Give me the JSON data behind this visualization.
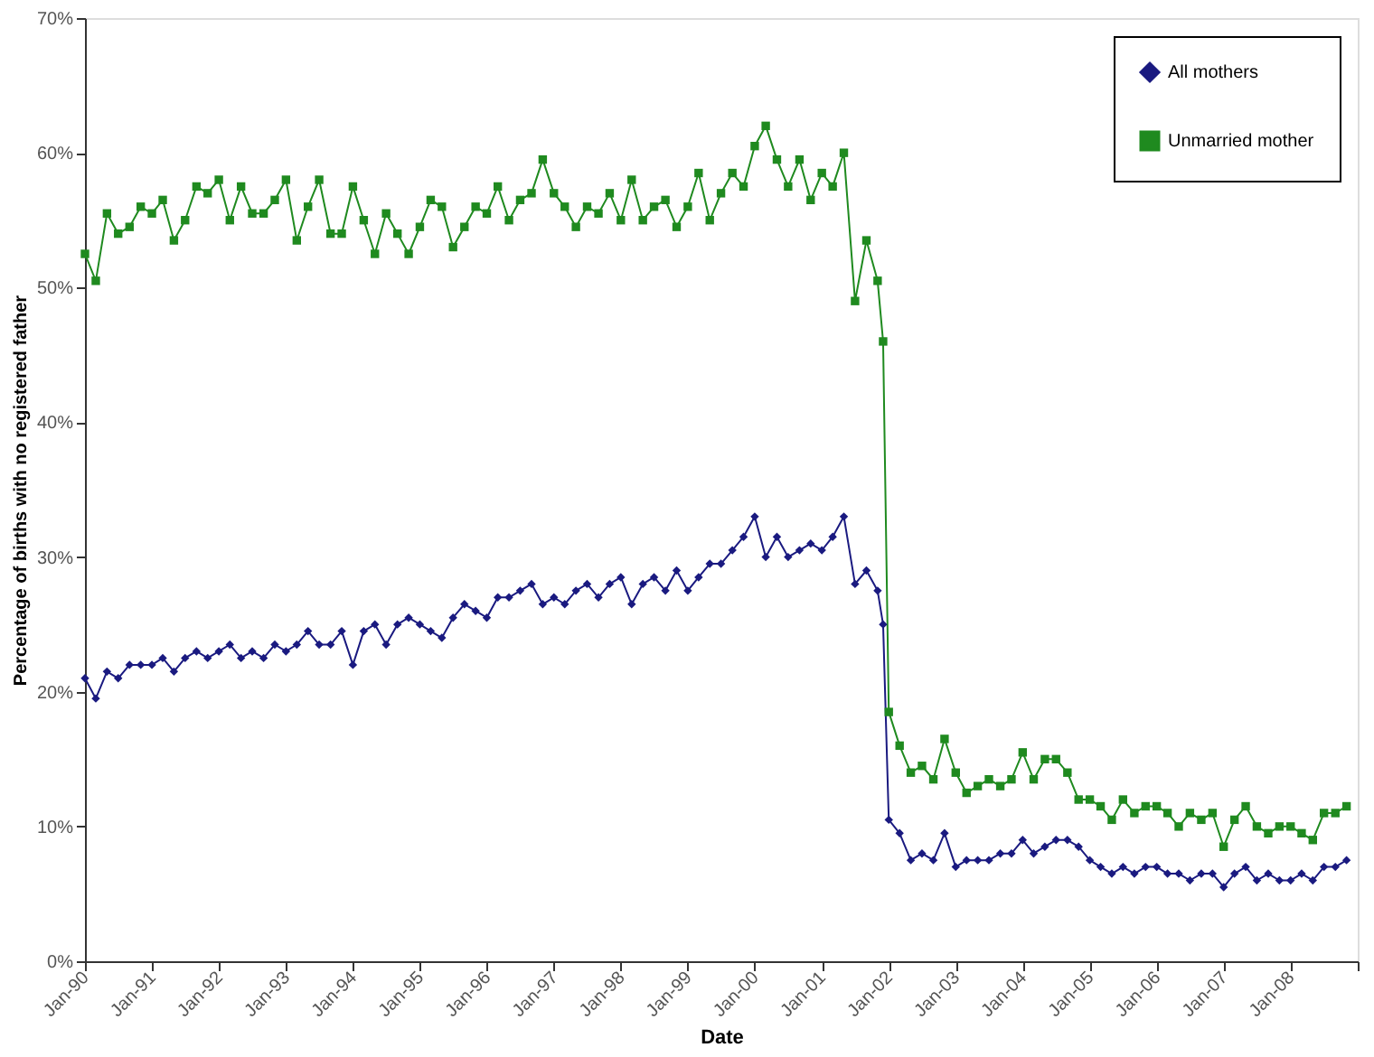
{
  "chart_data": {
    "type": "line",
    "xlabel": "Date",
    "ylabel": "Percentage of births with no registered father",
    "x": [
      "1990-01",
      "1990-03",
      "1990-05",
      "1990-07",
      "1990-09",
      "1990-11",
      "1991-01",
      "1991-03",
      "1991-05",
      "1991-07",
      "1991-09",
      "1991-11",
      "1992-01",
      "1992-03",
      "1992-05",
      "1992-07",
      "1992-09",
      "1992-11",
      "1993-01",
      "1993-03",
      "1993-05",
      "1993-07",
      "1993-09",
      "1993-11",
      "1994-01",
      "1994-03",
      "1994-05",
      "1994-07",
      "1994-09",
      "1994-11",
      "1995-01",
      "1995-03",
      "1995-05",
      "1995-07",
      "1995-09",
      "1995-11",
      "1996-01",
      "1996-03",
      "1996-05",
      "1996-07",
      "1996-09",
      "1996-11",
      "1997-01",
      "1997-03",
      "1997-05",
      "1997-07",
      "1997-09",
      "1997-11",
      "1998-01",
      "1998-03",
      "1998-05",
      "1998-07",
      "1998-09",
      "1998-11",
      "1999-01",
      "1999-03",
      "1999-05",
      "1999-07",
      "1999-09",
      "1999-11",
      "2000-01",
      "2000-03",
      "2000-05",
      "2000-07",
      "2000-09",
      "2000-11",
      "2001-01",
      "2001-03",
      "2001-05",
      "2001-07",
      "2001-09",
      "2001-11",
      "2001-12",
      "2002-01",
      "2002-03",
      "2002-05",
      "2002-07",
      "2002-09",
      "2002-11",
      "2003-01",
      "2003-03",
      "2003-05",
      "2003-07",
      "2003-09",
      "2003-11",
      "2004-01",
      "2004-03",
      "2004-05",
      "2004-07",
      "2004-09",
      "2004-11",
      "2005-01",
      "2005-03",
      "2005-05",
      "2005-07",
      "2005-09",
      "2005-11",
      "2006-01",
      "2006-03",
      "2006-05",
      "2006-07",
      "2006-09",
      "2006-11",
      "2007-01",
      "2007-03",
      "2007-05",
      "2007-07",
      "2007-09",
      "2007-11",
      "2008-01",
      "2008-03",
      "2008-05",
      "2008-07",
      "2008-09",
      "2008-11"
    ],
    "series": [
      {
        "name": "All mothers",
        "color": "#1a1a80",
        "marker": "diamond",
        "values": [
          21.0,
          19.5,
          21.5,
          21.0,
          22.0,
          22.0,
          22.0,
          22.5,
          21.5,
          22.5,
          23.0,
          22.5,
          23.0,
          23.5,
          22.5,
          23.0,
          22.5,
          23.5,
          23.0,
          23.5,
          24.5,
          23.5,
          23.5,
          24.5,
          22.0,
          24.5,
          25.0,
          23.5,
          25.0,
          25.5,
          25.0,
          24.5,
          24.0,
          25.5,
          26.5,
          26.0,
          25.5,
          27.0,
          27.0,
          27.5,
          28.0,
          26.5,
          27.0,
          26.5,
          27.5,
          28.0,
          27.0,
          28.0,
          28.5,
          26.5,
          28.0,
          28.5,
          27.5,
          29.0,
          27.5,
          28.5,
          29.5,
          29.5,
          30.5,
          31.5,
          33.0,
          30.0,
          31.5,
          30.0,
          30.5,
          31.0,
          30.5,
          31.5,
          33.0,
          28.0,
          29.0,
          27.5,
          25.0,
          10.5,
          9.5,
          7.5,
          8.0,
          7.5,
          9.5,
          7.0,
          7.5,
          7.5,
          7.5,
          8.0,
          8.0,
          9.0,
          8.0,
          8.5,
          9.0,
          9.0,
          8.5,
          7.5,
          7.0,
          6.5,
          7.0,
          6.5,
          7.0,
          7.0,
          6.5,
          6.5,
          6.0,
          6.5,
          6.5,
          5.5,
          6.5,
          7.0,
          6.0,
          6.5,
          6.0,
          6.0,
          6.5,
          6.0,
          7.0,
          7.0,
          7.5
        ]
      },
      {
        "name": "Unmarried mother",
        "color": "#1f8a1f",
        "marker": "square",
        "values": [
          52.5,
          50.5,
          55.5,
          54.0,
          54.5,
          56.0,
          55.5,
          56.5,
          53.5,
          55.0,
          57.5,
          57.0,
          58.0,
          55.0,
          57.5,
          55.5,
          55.5,
          56.5,
          58.0,
          53.5,
          56.0,
          58.0,
          54.0,
          54.0,
          57.5,
          55.0,
          52.5,
          55.5,
          54.0,
          52.5,
          54.5,
          56.5,
          56.0,
          53.0,
          54.5,
          56.0,
          55.5,
          57.5,
          55.0,
          56.5,
          57.0,
          59.5,
          57.0,
          56.0,
          54.5,
          56.0,
          55.5,
          57.0,
          55.0,
          58.0,
          55.0,
          56.0,
          56.5,
          54.5,
          56.0,
          58.5,
          55.0,
          57.0,
          58.5,
          57.5,
          60.5,
          62.0,
          59.5,
          57.5,
          59.5,
          56.5,
          58.5,
          57.5,
          60.0,
          49.0,
          53.5,
          50.5,
          46.0,
          18.5,
          16.0,
          14.0,
          14.5,
          13.5,
          16.5,
          14.0,
          12.5,
          13.0,
          13.5,
          13.0,
          13.5,
          15.5,
          13.5,
          15.0,
          15.0,
          14.0,
          12.0,
          12.0,
          11.5,
          10.5,
          12.0,
          11.0,
          11.5,
          11.5,
          11.0,
          10.0,
          11.0,
          10.5,
          11.0,
          8.5,
          10.5,
          11.5,
          10.0,
          9.5,
          10.0,
          10.0,
          9.5,
          9.0,
          11.0,
          11.0,
          11.5
        ]
      }
    ],
    "xlim": [
      "1990-01",
      "2009-01"
    ],
    "xticks": [
      {
        "value": "1990-01",
        "label": "Jan-90"
      },
      {
        "value": "1991-01",
        "label": "Jan-91"
      },
      {
        "value": "1992-01",
        "label": "Jan-92"
      },
      {
        "value": "1993-01",
        "label": "Jan-93"
      },
      {
        "value": "1994-01",
        "label": "Jan-94"
      },
      {
        "value": "1995-01",
        "label": "Jan-95"
      },
      {
        "value": "1996-01",
        "label": "Jan-96"
      },
      {
        "value": "1997-01",
        "label": "Jan-97"
      },
      {
        "value": "1998-01",
        "label": "Jan-98"
      },
      {
        "value": "1999-01",
        "label": "Jan-99"
      },
      {
        "value": "2000-01",
        "label": "Jan-00"
      },
      {
        "value": "2001-01",
        "label": "Jan-01"
      },
      {
        "value": "2002-01",
        "label": "Jan-02"
      },
      {
        "value": "2003-01",
        "label": "Jan-03"
      },
      {
        "value": "2004-01",
        "label": "Jan-04"
      },
      {
        "value": "2005-01",
        "label": "Jan-05"
      },
      {
        "value": "2006-01",
        "label": "Jan-06"
      },
      {
        "value": "2007-01",
        "label": "Jan-07"
      },
      {
        "value": "2008-01",
        "label": "Jan-08"
      },
      {
        "value": "2009-01",
        "label": null
      }
    ],
    "ylim": [
      0,
      70
    ],
    "yticks": [
      {
        "value": 0,
        "label": "0%"
      },
      {
        "value": 10,
        "label": "10%"
      },
      {
        "value": 20,
        "label": "20%"
      },
      {
        "value": 30,
        "label": "30%"
      },
      {
        "value": 40,
        "label": "40%"
      },
      {
        "value": 50,
        "label": "50%"
      },
      {
        "value": 60,
        "label": "60%"
      },
      {
        "value": 70,
        "label": "70%"
      }
    ],
    "grid": false,
    "legend": "top right",
    "line_style": "solid"
  }
}
